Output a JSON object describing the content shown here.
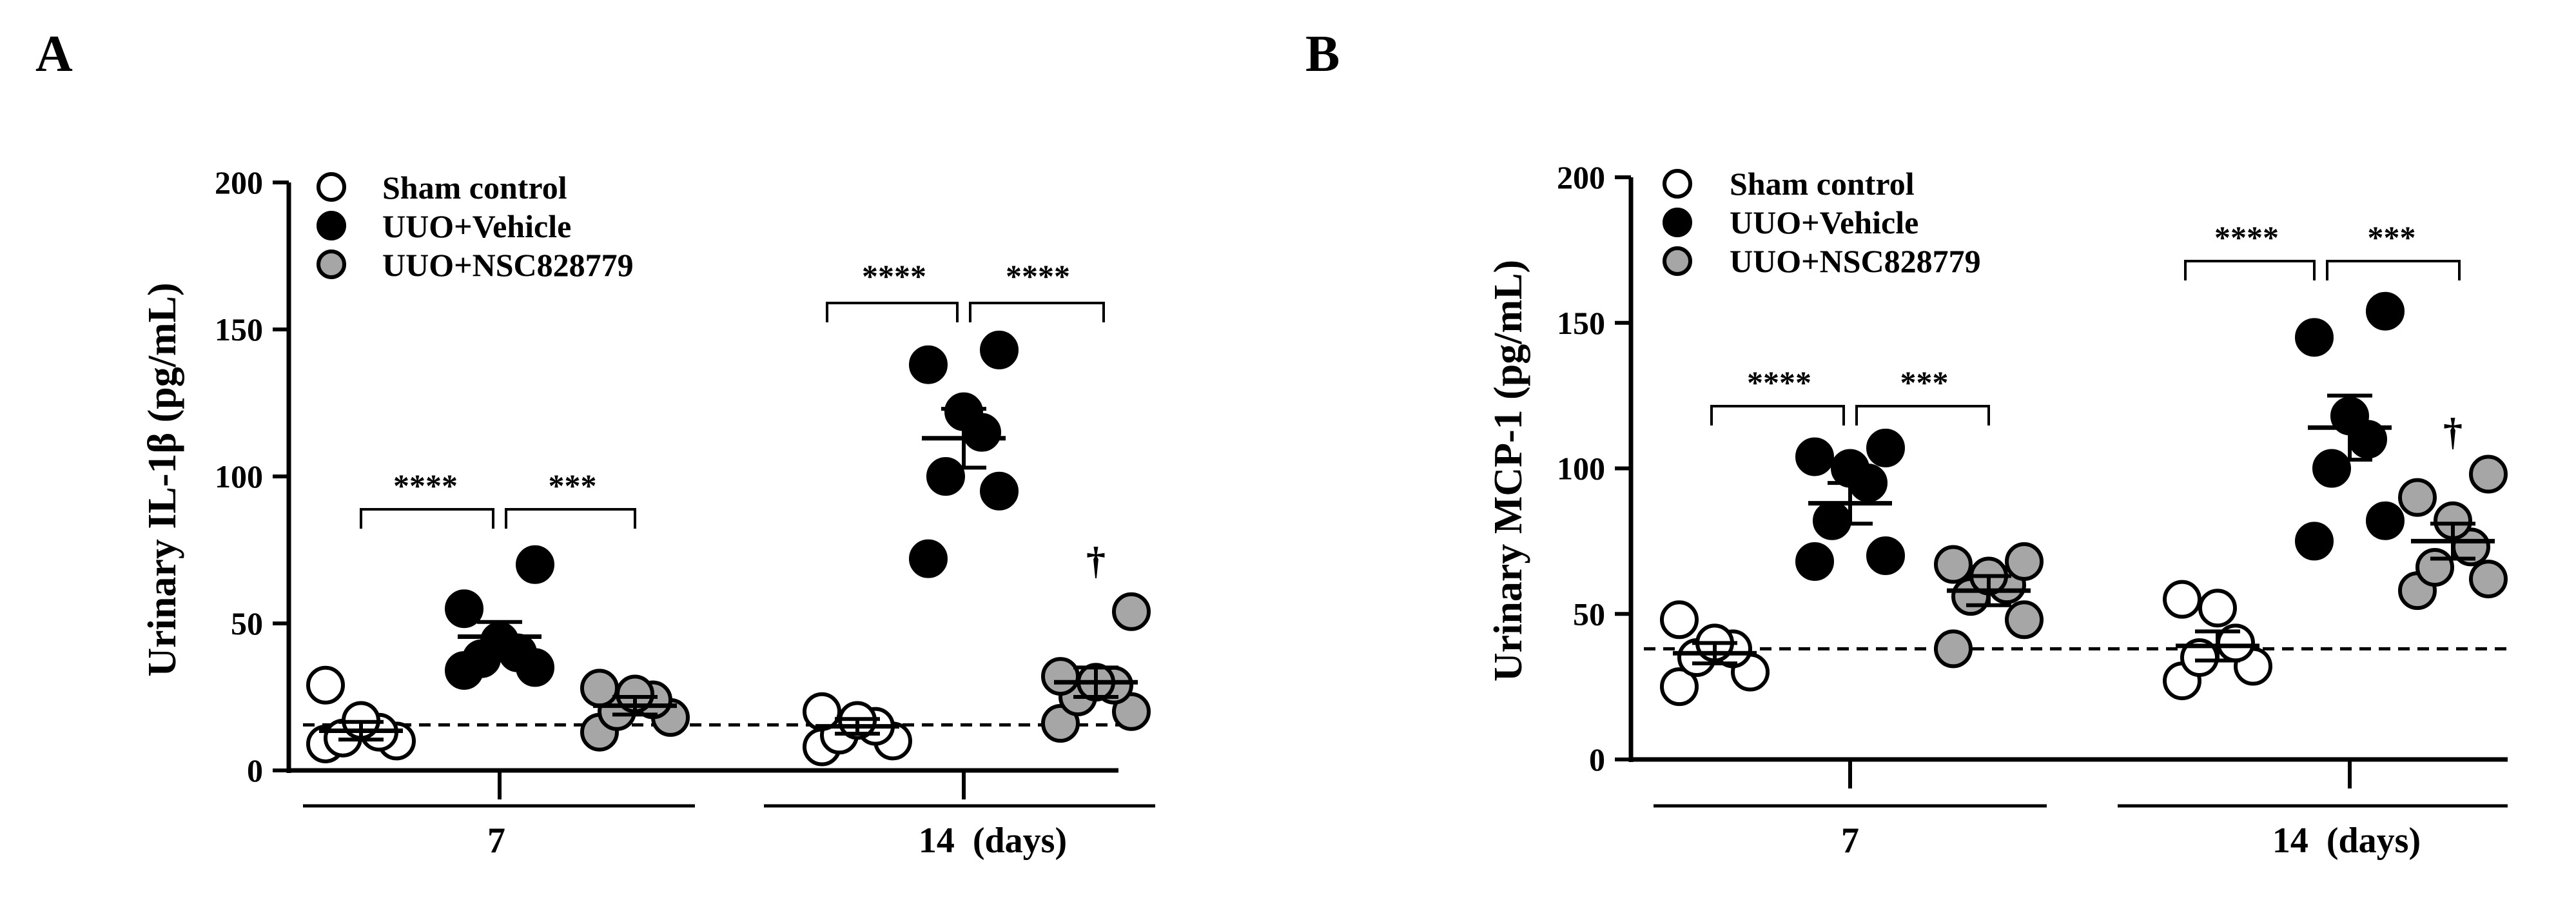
{
  "chart_data": [
    {
      "type": "scatter",
      "panel_label": "A",
      "ylabel": "Urinary IL-1β (pg/mL)",
      "xlabel": "",
      "ylim": [
        0,
        200
      ],
      "yticks": [
        0,
        50,
        100,
        150,
        200
      ],
      "grid": false,
      "legend_placement": "top-left",
      "groups": [
        {
          "label": "7",
          "comparisons": [
            "****",
            "***"
          ],
          "dagger": ""
        },
        {
          "label": "14  (days)",
          "comparisons": [
            "****",
            "****"
          ],
          "dagger": "†"
        }
      ],
      "baseline": 15.5,
      "series": [
        {
          "name": "Sham control",
          "fill": "#ffffff",
          "points": [
            [
              9,
              10,
              11,
              13,
              17,
              29
            ],
            [
              8,
              10,
              12,
              15,
              17,
              20
            ]
          ],
          "mean": [
            13.5,
            15
          ],
          "sem": [
            3,
            2.5
          ]
        },
        {
          "name": "UUO+Vehicle",
          "fill": "#000000",
          "points": [
            [
              34,
              35,
              38,
              40,
              44,
              55,
              70
            ],
            [
              72,
              95,
              100,
              115,
              122,
              138,
              143
            ]
          ],
          "mean": [
            45.5,
            113
          ],
          "sem": [
            5,
            10
          ]
        },
        {
          "name": "UUO+NSC828779",
          "fill": "#a6a6a6",
          "points": [
            [
              13,
              18,
              20,
              24,
              26,
              28
            ],
            [
              16,
              20,
              25,
              29,
              30,
              32,
              54
            ]
          ],
          "mean": [
            22,
            30
          ],
          "sem": [
            3,
            5
          ]
        }
      ]
    },
    {
      "type": "scatter",
      "panel_label": "B",
      "ylabel": "Urinary MCP-1 (pg/mL)",
      "xlabel": "",
      "ylim": [
        0,
        200
      ],
      "yticks": [
        0,
        50,
        100,
        150,
        200
      ],
      "grid": false,
      "legend_placement": "top-left",
      "groups": [
        {
          "label": "7",
          "comparisons": [
            "****",
            "***"
          ],
          "dagger": ""
        },
        {
          "label": "14  (days)",
          "comparisons": [
            "****",
            "***"
          ],
          "dagger": "†"
        }
      ],
      "baseline": 38,
      "series": [
        {
          "name": "Sham control",
          "fill": "#ffffff",
          "points": [
            [
              25,
              30,
              35,
              38,
              40,
              48
            ],
            [
              27,
              32,
              35,
              40,
              52,
              55
            ]
          ],
          "mean": [
            36.5,
            39
          ],
          "sem": [
            3.5,
            5
          ]
        },
        {
          "name": "UUO+Vehicle",
          "fill": "#000000",
          "points": [
            [
              68,
              70,
              82,
              95,
              100,
              104,
              107
            ],
            [
              75,
              82,
              100,
              110,
              118,
              145,
              154
            ]
          ],
          "mean": [
            88,
            114
          ],
          "sem": [
            7,
            11
          ]
        },
        {
          "name": "UUO+NSC828779",
          "fill": "#a6a6a6",
          "points": [
            [
              38,
              48,
              56,
              60,
              63,
              67,
              68
            ],
            [
              58,
              62,
              66,
              73,
              82,
              90,
              98
            ]
          ],
          "mean": [
            58,
            75
          ],
          "sem": [
            5,
            6
          ]
        }
      ]
    }
  ]
}
